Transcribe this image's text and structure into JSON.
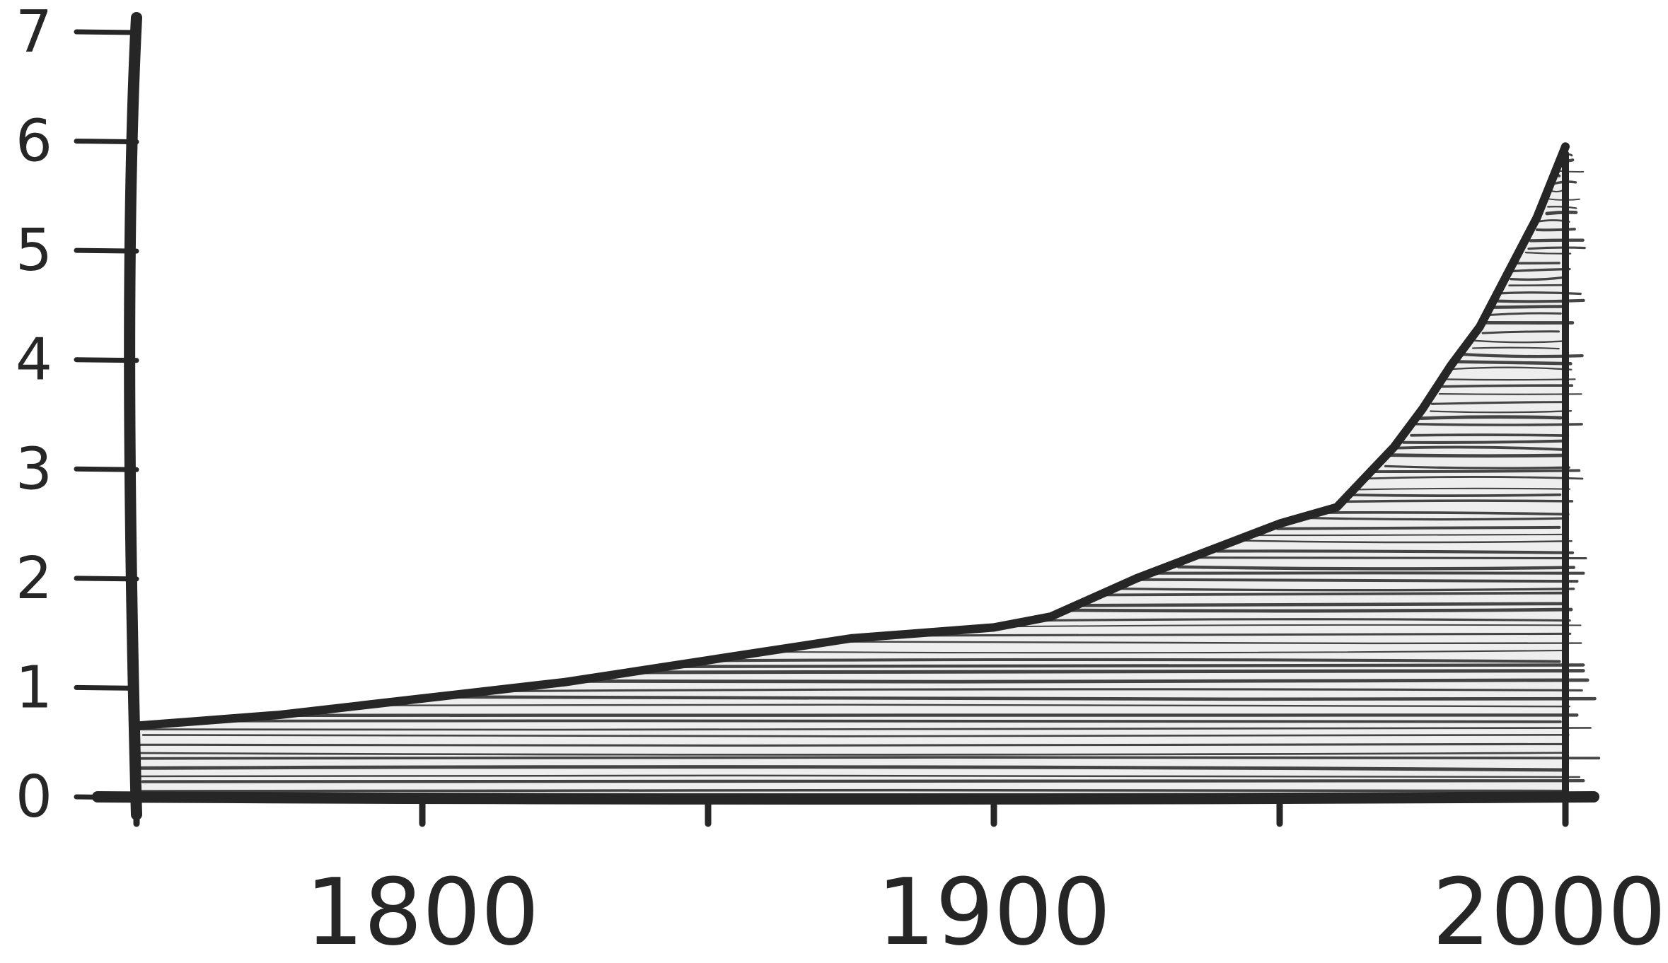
{
  "chart_data": {
    "type": "area",
    "style": "hand-drawn sketch, hatched fill",
    "x": [
      1750,
      1775,
      1800,
      1825,
      1850,
      1875,
      1900,
      1910,
      1925,
      1950,
      1960,
      1970,
      1975,
      1980,
      1985,
      1990,
      1995,
      2000
    ],
    "series": [
      {
        "values": [
          0.65,
          0.75,
          0.9,
          1.05,
          1.25,
          1.45,
          1.55,
          1.65,
          2.0,
          2.5,
          2.65,
          3.2,
          3.55,
          3.95,
          4.3,
          4.8,
          5.3,
          5.95
        ]
      }
    ],
    "xlim": [
      1750,
      2000
    ],
    "ylim": [
      0,
      7
    ],
    "x_ticks": [
      1750,
      1800,
      1850,
      1900,
      1950,
      2000
    ],
    "x_tick_labels": [
      "",
      "1800",
      "",
      "1900",
      "",
      "2000"
    ],
    "y_ticks": [
      0,
      1,
      2,
      3,
      4,
      5,
      6,
      7
    ],
    "y_tick_labels": [
      "0",
      "1",
      "2",
      "3",
      "4",
      "5",
      "6",
      "7"
    ],
    "title": "",
    "xlabel": "",
    "ylabel": "",
    "grid": false,
    "colors": {
      "ink": "#262626",
      "fill": "#eeeeee"
    }
  }
}
